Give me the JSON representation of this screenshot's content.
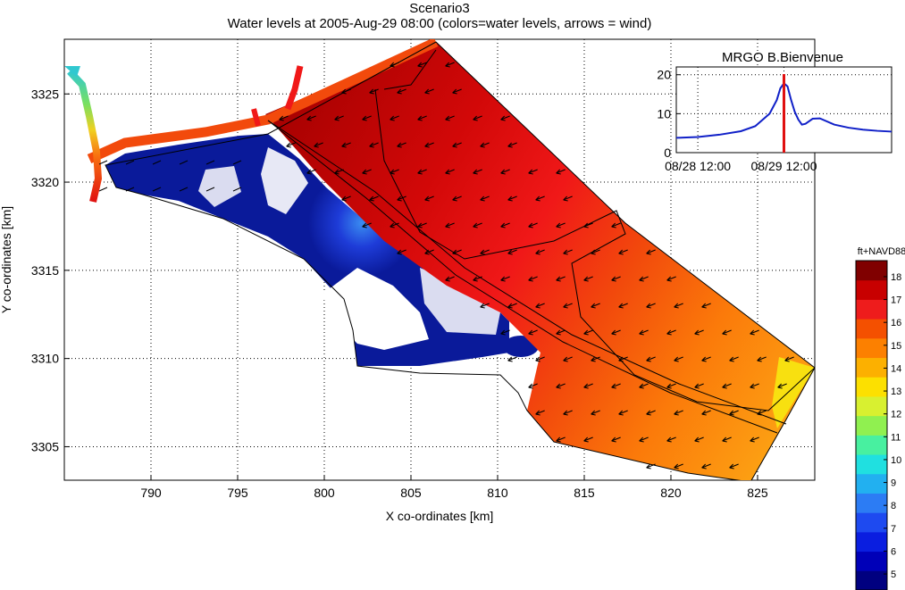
{
  "header": {
    "title": "Scenario3",
    "subtitle": "Water levels at 2005-Aug-29 08:00 (colors=water levels, arrows = wind)"
  },
  "colors": {
    "deep_red": "#a00000",
    "dark_red": "#c80000",
    "red": "#f01818",
    "red_orange": "#f24a0c",
    "orange": "#fb7a0a",
    "light_orange": "#fc9c12",
    "yellow": "#f8e010",
    "blue_dark": "#0a1a9a",
    "blue_mid": "#1e3cd8",
    "blue_light": "#3a8cf0",
    "green": "#48e880",
    "inset_line": "#1020c8",
    "inset_marker": "#e01010"
  },
  "chart_data": [
    {
      "type": "heatmap",
      "title": "Water levels at 2005-Aug-29 08:00 (colors=water levels, arrows = wind)",
      "xlabel": "X co-ordinates [km]",
      "ylabel": "Y co-ordinates [km]",
      "xlim": [
        785,
        828.3
      ],
      "ylim": [
        3303.1,
        3328.1
      ],
      "x_ticks": [
        790,
        795,
        800,
        805,
        810,
        815,
        820,
        825
      ],
      "y_ticks": [
        3305,
        3310,
        3315,
        3320,
        3325
      ],
      "grid": true,
      "colorbar": {
        "label": "ft+NAVD88",
        "ticks": [
          5,
          6,
          7,
          8,
          9,
          10,
          11,
          12,
          13,
          14,
          15,
          16,
          17,
          18
        ],
        "range": [
          4.3,
          18.7
        ],
        "colors": [
          "#000080",
          "#0000b8",
          "#0a1ee0",
          "#1e4af0",
          "#2c7cf4",
          "#22b0f0",
          "#20e0e0",
          "#48f0a0",
          "#90f050",
          "#d8f030",
          "#fce000",
          "#fcb000",
          "#fc8000",
          "#f45000",
          "#ee1c1c",
          "#c80000",
          "#800000"
        ]
      },
      "wind_direction": "from the east-northeast (arrows point west-southwest)"
    },
    {
      "type": "line",
      "title": "MRGO B.Bienvenue",
      "x_ticks": [
        "08/28 12:00",
        "08/29 12:00"
      ],
      "y_ticks": [
        0,
        10,
        20
      ],
      "ylim": [
        0,
        22
      ],
      "grid": true,
      "x": [
        0,
        6,
        12,
        18,
        22,
        26,
        28,
        29,
        30,
        31,
        32,
        33,
        34,
        35,
        36,
        38,
        40,
        44,
        48,
        52,
        56,
        60
      ],
      "values": [
        3.8,
        4.0,
        4.6,
        5.5,
        6.8,
        10.0,
        13.5,
        16.5,
        17.8,
        17.0,
        13.5,
        10.5,
        8.5,
        7.2,
        7.4,
        8.7,
        8.8,
        7.2,
        6.4,
        5.9,
        5.6,
        5.4
      ],
      "current_time_marker": 30
    }
  ]
}
